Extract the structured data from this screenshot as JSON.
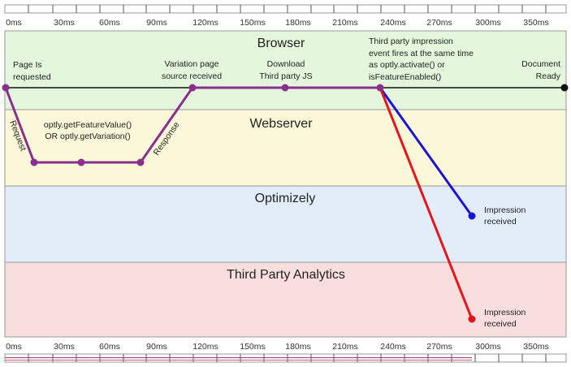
{
  "timeline": {
    "ticks": [
      "0ms",
      "30ms",
      "60ms",
      "90ms",
      "120ms",
      "150ms",
      "180ms",
      "210ms",
      "240ms",
      "270ms",
      "300ms",
      "350ms"
    ]
  },
  "lanes": [
    {
      "id": "browser",
      "title": "Browser",
      "color": "#e4f7dc"
    },
    {
      "id": "webserver",
      "title": "Webserver",
      "color": "#fbf7d9"
    },
    {
      "id": "optimizely",
      "title": "Optimizely",
      "color": "#e3edfa"
    },
    {
      "id": "analytics",
      "title": "Third Party Analytics",
      "color": "#f8dedc"
    }
  ],
  "annotations": {
    "page_requested": [
      "Page Is",
      "requested"
    ],
    "variation_received": [
      "Variation page",
      "source received"
    ],
    "download_js": [
      "Download",
      "Third party JS"
    ],
    "impression_fires": [
      "Third party impression",
      "event fires at the same time",
      "as optly.activate() or",
      "isFeatureEnabled()"
    ],
    "document_ready": [
      "Document",
      "Ready"
    ],
    "server_calls": [
      "optly.getFeatureValue()",
      "OR optly.getVariation()"
    ],
    "request": "Request",
    "response": "Response",
    "impression_optimizely": [
      "Impression",
      "received"
    ],
    "impression_analytics": [
      "Impression",
      "received"
    ]
  },
  "colors": {
    "flow": "#8b2f8f",
    "optimizely_line": "#1b14d8",
    "analytics_line": "#e8141c",
    "baseline": "#111111"
  }
}
